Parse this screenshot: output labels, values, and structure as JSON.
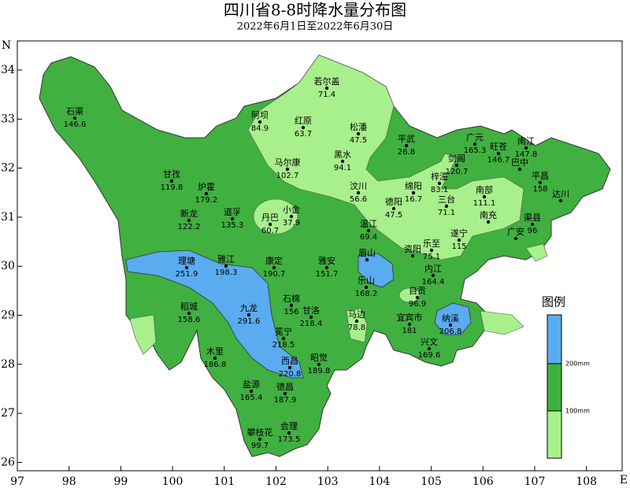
{
  "header": {
    "title": "四川省8-8时降水量分布图",
    "subtitle": "2022年6月1日至2022年6月30日"
  },
  "axes": {
    "x_label": "E",
    "y_label": "N",
    "xticks": [
      97,
      98,
      99,
      100,
      101,
      102,
      103,
      104,
      105,
      106,
      107,
      108
    ],
    "yticks": [
      34,
      33,
      32,
      31,
      30,
      29,
      28,
      27,
      26
    ]
  },
  "legend": {
    "title": "图例",
    "labels": [
      "200mm",
      "100mm"
    ]
  },
  "stations": [
    {
      "name": "石渠",
      "value": 146.6
    },
    {
      "name": "若尔盖",
      "value": 71.4
    },
    {
      "name": "阿坝",
      "value": 84.9
    },
    {
      "name": "红原",
      "value": 63.7
    },
    {
      "name": "松潘",
      "value": 47.5
    },
    {
      "name": "平武",
      "value": 26.8
    },
    {
      "name": "黑水",
      "value": 94.1
    },
    {
      "name": "马尔康",
      "value": 102.7
    },
    {
      "name": "广元",
      "value": 165.3
    },
    {
      "name": "旺苍",
      "value": 146.7
    },
    {
      "name": "南江",
      "value": 147.8
    },
    {
      "name": "剑阁",
      "value": 120.7
    },
    {
      "name": "巴中",
      "value": null
    },
    {
      "name": "平昌",
      "value": 158
    },
    {
      "name": "梓潼",
      "value": 83.1
    },
    {
      "name": "甘孜",
      "value": 119.8
    },
    {
      "name": "炉霍",
      "value": 179.2
    },
    {
      "name": "汶川",
      "value": 56.6
    },
    {
      "name": "绵阳",
      "value": 16.7
    },
    {
      "name": "南部",
      "value": 111.1
    },
    {
      "name": "达川",
      "value": null
    },
    {
      "name": "德阳",
      "value": 47.5
    },
    {
      "name": "三台",
      "value": 71.1
    },
    {
      "name": "新龙",
      "value": 122.2
    },
    {
      "name": "道孚",
      "value": 135.3
    },
    {
      "name": "丹巴",
      "value": 60.7
    },
    {
      "name": "小金",
      "value": 37.9
    },
    {
      "name": "温江",
      "value": 69.4
    },
    {
      "name": "南充",
      "value": null
    },
    {
      "name": "渠县",
      "value": 96
    },
    {
      "name": "遂宁",
      "value": 115
    },
    {
      "name": "乐至",
      "value": 75.1
    },
    {
      "name": "广安",
      "value": null
    },
    {
      "name": "理塘",
      "value": 251.9
    },
    {
      "name": "雅江",
      "value": 198.3
    },
    {
      "name": "康定",
      "value": 190.7
    },
    {
      "name": "雅安",
      "value": 151.7
    },
    {
      "name": "眉山",
      "value": null
    },
    {
      "name": "资阳",
      "value": null
    },
    {
      "name": "内江",
      "value": 164.4
    },
    {
      "name": "乐山",
      "value": 168.2
    },
    {
      "name": "自贡",
      "value": 96.9
    },
    {
      "name": "石棉",
      "value": 156
    },
    {
      "name": "九龙",
      "value": 291.6
    },
    {
      "name": "甘洛",
      "value": 218.4
    },
    {
      "name": "马边",
      "value": 78.8
    },
    {
      "name": "宜宾市",
      "value": 181
    },
    {
      "name": "纳溪",
      "value": 206.8
    },
    {
      "name": "稻城",
      "value": 158.6
    },
    {
      "name": "冕宁",
      "value": 218.5
    },
    {
      "name": "兴文",
      "value": 169.6
    },
    {
      "name": "木里",
      "value": 186.8
    },
    {
      "name": "西昌",
      "value": 220.8
    },
    {
      "name": "昭觉",
      "value": 189.8
    },
    {
      "name": "盐源",
      "value": 165.4
    },
    {
      "name": "德昌",
      "value": 187.9
    },
    {
      "name": "会理",
      "value": 173.5
    },
    {
      "name": "攀枝花",
      "value": 99.7
    }
  ]
}
